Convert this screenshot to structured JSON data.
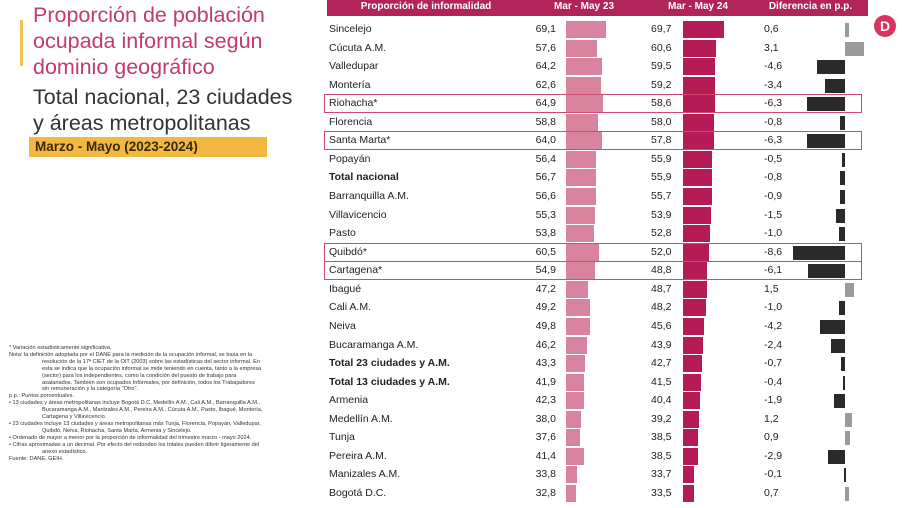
{
  "title": {
    "line1": "Proporción de población",
    "line2": "ocupada informal según",
    "line3": "dominio geográfico",
    "sub1": "Total nacional, 23 ciudades",
    "sub2": "y áreas metropolitanas",
    "period": "Marzo - Mayo (2023-2024)"
  },
  "logo": "D",
  "notes": [
    {
      "text": "* Variación estadísticamente significativa.",
      "indent": false
    },
    {
      "text": "Nota: la definición adoptada por el DANE para la medición de la ocupación informal, se basa en la",
      "indent": false
    },
    {
      "text": "resolución de la 17ª CIET de la OIT (2003) sobre las estadísticas del sector informal. En",
      "indent": true
    },
    {
      "text": "esta se indica que la ocupación informal se mide teniendo en cuenta, tanto a la empresa",
      "indent": true
    },
    {
      "text": "(sector) para los independientes, como la condición del puesto de trabajo para",
      "indent": true
    },
    {
      "text": "asalariados. También son ocupados Informales, por definición, todos los Trabajadores",
      "indent": true
    },
    {
      "text": "sin remuneración y la categoría \"Otro\".",
      "indent": true
    },
    {
      "text": "p.p.: Puntos porcentuales.",
      "indent": false
    },
    {
      "text": "• 13 ciudades y áreas metropolitanas incluye Bogotá D.C, Medellín A.M., Cali A.M., Barranquilla A.M.,",
      "indent": false
    },
    {
      "text": "Bucaramanga A.M., Manizales A.M., Pereira A.M., Cúcuta A.M., Pasto, Ibagué, Montería,",
      "indent": true
    },
    {
      "text": "Cartagena y Villavicencio.",
      "indent": true
    },
    {
      "text": "• 23 ciudades incluye 13 ciudades y áreas metropolitanas más Tunja, Florencia, Popayán, Valledupar,",
      "indent": false
    },
    {
      "text": "Quibdó, Neiva, Riohacha, Santa Marta, Armenia y Sincelejo.",
      "indent": true
    },
    {
      "text": "• Ordenado de mayor a menor por la proporción de informalidad del trimestre marzo - mayo 2024.",
      "indent": false
    },
    {
      "text": "• Cifras aproximadas a un decimal. Por efecto del redondeo los totales pueden diferir ligeramente del",
      "indent": false
    },
    {
      "text": "anexo estadístico.",
      "indent": true
    },
    {
      "text": "Fuente: DANE, GEIH.",
      "indent": false
    }
  ],
  "chart_data": {
    "type": "table",
    "headers": [
      "Proporción de informalidad",
      "Mar - May 23",
      "Mar - May 24",
      "Diferencia en p.p."
    ],
    "rows": [
      {
        "name": "Sincelejo",
        "v23": "69,1",
        "v24": "69,7",
        "diff": "0,6",
        "bold": false,
        "highlight": false
      },
      {
        "name": "Cúcuta A.M.",
        "v23": "57,6",
        "v24": "60,6",
        "diff": "3,1",
        "bold": false,
        "highlight": false
      },
      {
        "name": "Valledupar",
        "v23": "64,2",
        "v24": "59,5",
        "diff": "-4,6",
        "bold": false,
        "highlight": false
      },
      {
        "name": "Montería",
        "v23": "62,6",
        "v24": "59,2",
        "diff": "-3,4",
        "bold": false,
        "highlight": false
      },
      {
        "name": "Riohacha*",
        "v23": "64,9",
        "v24": "58,6",
        "diff": "-6,3",
        "bold": false,
        "highlight": true
      },
      {
        "name": "Florencia",
        "v23": "58,8",
        "v24": "58,0",
        "diff": "-0,8",
        "bold": false,
        "highlight": false
      },
      {
        "name": "Santa Marta*",
        "v23": "64,0",
        "v24": "57,8",
        "diff": "-6,3",
        "bold": false,
        "highlight": true
      },
      {
        "name": "Popayán",
        "v23": "56,4",
        "v24": "55,9",
        "diff": "-0,5",
        "bold": false,
        "highlight": false
      },
      {
        "name": "Total nacional",
        "v23": "56,7",
        "v24": "55,9",
        "diff": "-0,8",
        "bold": true,
        "highlight": false
      },
      {
        "name": "Barranquilla A.M.",
        "v23": "56,6",
        "v24": "55,7",
        "diff": "-0,9",
        "bold": false,
        "highlight": false
      },
      {
        "name": "Villavicencio",
        "v23": "55,3",
        "v24": "53,9",
        "diff": "-1,5",
        "bold": false,
        "highlight": false
      },
      {
        "name": "Pasto",
        "v23": "53,8",
        "v24": "52,8",
        "diff": "-1,0",
        "bold": false,
        "highlight": false
      },
      {
        "name": "Quibdó*",
        "v23": "60,5",
        "v24": "52,0",
        "diff": "-8,6",
        "bold": false,
        "highlight": true
      },
      {
        "name": "Cartagena*",
        "v23": "54,9",
        "v24": "48,8",
        "diff": "-6,1",
        "bold": false,
        "highlight": true
      },
      {
        "name": "Ibagué",
        "v23": "47,2",
        "v24": "48,7",
        "diff": "1,5",
        "bold": false,
        "highlight": false
      },
      {
        "name": "Cali A.M.",
        "v23": "49,2",
        "v24": "48,2",
        "diff": "-1,0",
        "bold": false,
        "highlight": false
      },
      {
        "name": "Neiva",
        "v23": "49,8",
        "v24": "45,6",
        "diff": "-4,2",
        "bold": false,
        "highlight": false
      },
      {
        "name": "Bucaramanga A.M.",
        "v23": "46,2",
        "v24": "43,9",
        "diff": "-2,4",
        "bold": false,
        "highlight": false
      },
      {
        "name": "Total 23 ciudades y A.M.",
        "v23": "43,3",
        "v24": "42,7",
        "diff": "-0,7",
        "bold": true,
        "highlight": false
      },
      {
        "name": "Total 13 ciudades y A.M.",
        "v23": "41,9",
        "v24": "41,5",
        "diff": "-0,4",
        "bold": true,
        "highlight": false
      },
      {
        "name": "Armenia",
        "v23": "42,3",
        "v24": "40,4",
        "diff": "-1,9",
        "bold": false,
        "highlight": false
      },
      {
        "name": "Medellín A.M.",
        "v23": "38,0",
        "v24": "39,2",
        "diff": "1,2",
        "bold": false,
        "highlight": false
      },
      {
        "name": "Tunja",
        "v23": "37,6",
        "v24": "38,5",
        "diff": "0,9",
        "bold": false,
        "highlight": false
      },
      {
        "name": "Pereira A.M.",
        "v23": "41,4",
        "v24": "38,5",
        "diff": "-2,9",
        "bold": false,
        "highlight": false
      },
      {
        "name": "Manizales A.M.",
        "v23": "33,8",
        "v24": "33,7",
        "diff": "-0,1",
        "bold": false,
        "highlight": false
      },
      {
        "name": "Bogotá D.C.",
        "v23": "32,8",
        "v24": "33,5",
        "diff": "0,7",
        "bold": false,
        "highlight": false
      }
    ],
    "colors": {
      "bar23": "#d9849f",
      "bar24": "#b51c55",
      "diff_neg": "#2a2a2a",
      "diff_pos": "#9b9b9b",
      "header": "#b1245a",
      "highlight": "#d24a6d"
    }
  }
}
